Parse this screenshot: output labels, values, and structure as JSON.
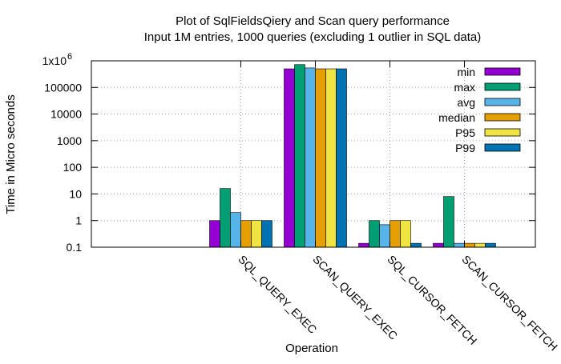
{
  "chart_data": {
    "type": "bar",
    "title": "Plot of SqlFieldsQiery and Scan query performance",
    "subtitle": "Input 1M entries, 1000 queries (excluding 1 outlier in SQL data)",
    "xlabel": "Operation",
    "ylabel": "Time in Micro seconds",
    "yscale": "log",
    "ylim": [
      0.1,
      1000000
    ],
    "grid": true,
    "legend_position": "top-right",
    "y_tick_labels": [
      "0.1",
      "1",
      "10",
      "100",
      "1000",
      "10000",
      "100000"
    ],
    "y_top_tick": {
      "base": "1x10",
      "exp": "6"
    },
    "categories": [
      "SQL_QUERY_EXEC",
      "SCAN_QUERY_EXEC",
      "SQL_CURSOR_FETCH",
      "SCAN_CURSOR_FETCH"
    ],
    "series": [
      {
        "name": "min",
        "color": "#9400d3",
        "values": [
          1,
          500000,
          0.14,
          0.14
        ]
      },
      {
        "name": "max",
        "color": "#009e73",
        "values": [
          16,
          720000,
          1,
          8
        ]
      },
      {
        "name": "avg",
        "color": "#56b4e9",
        "values": [
          2,
          540000,
          0.7,
          0.14
        ]
      },
      {
        "name": "median",
        "color": "#e69f00",
        "values": [
          1,
          500000,
          1,
          0.14
        ]
      },
      {
        "name": "P95",
        "color": "#f0e442",
        "values": [
          1,
          500000,
          1,
          0.14
        ]
      },
      {
        "name": "P99",
        "color": "#0072b2",
        "values": [
          1,
          500000,
          0.14,
          0.14
        ]
      }
    ]
  }
}
